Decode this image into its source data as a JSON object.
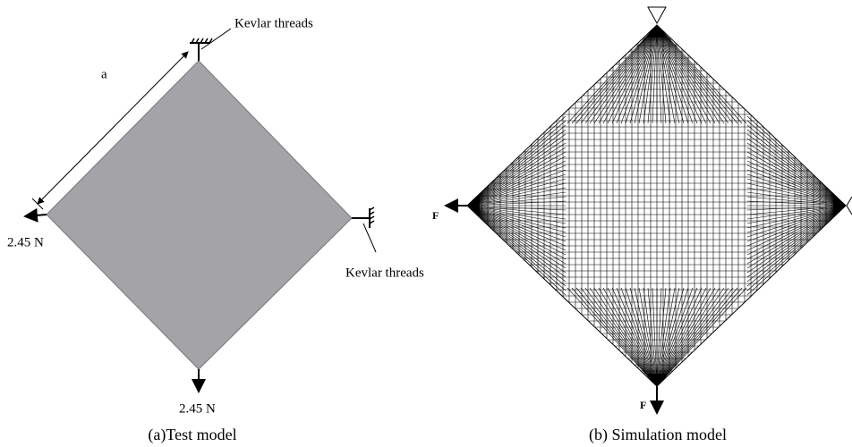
{
  "left_panel": {
    "top_support_label": "Kevlar threads",
    "dimension_label": "a",
    "left_load_label": "2.45 N",
    "right_support_label": "Kevlar threads",
    "bottom_load_label": "2.45 N",
    "caption": "(a)Test model"
  },
  "right_panel": {
    "left_force_label": "F",
    "bottom_force_label": "F",
    "caption": "(b) Simulation model"
  }
}
